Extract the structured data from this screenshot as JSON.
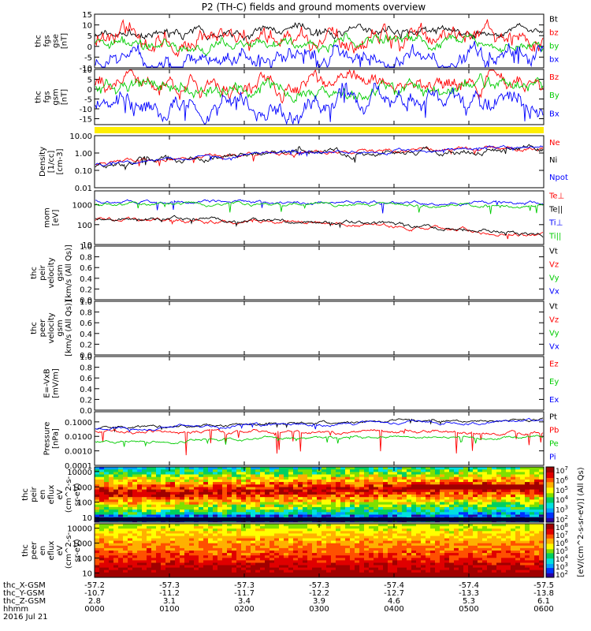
{
  "chart_data": {
    "type": "line",
    "title": "P2 (TH-C) fields and ground moments overview",
    "date": "2016 Jul 21",
    "time_ticks": [
      "0000",
      "0100",
      "0200",
      "0300",
      "0400",
      "0500",
      "0600"
    ],
    "ephemeris": [
      {
        "label": "thc_X-GSM",
        "values": [
          "-57.2",
          "-57.3",
          "-57.3",
          "-57.3",
          "-57.4",
          "-57.4",
          "-57.5"
        ]
      },
      {
        "label": "thc_Y-GSM",
        "values": [
          "-10.7",
          "-11.2",
          "-11.7",
          "-12.2",
          "-12.7",
          "-13.3",
          "-13.8"
        ]
      },
      {
        "label": "thc_Z-GSM",
        "values": [
          "2.8",
          "3.1",
          "3.4",
          "3.9",
          "4.6",
          "5.3",
          "6.1"
        ]
      },
      {
        "label": "hhmm",
        "values": [
          "0000",
          "0100",
          "0200",
          "0300",
          "0400",
          "0500",
          "0600"
        ]
      }
    ],
    "panels": [
      {
        "id": "fgs_gse",
        "ylabel": [
          "thc",
          "fgs",
          "gse",
          "[nT]"
        ],
        "yticks": [
          "15",
          "10",
          "5",
          "0",
          "-5",
          "-10"
        ],
        "ylim": [
          -10,
          15
        ],
        "series": [
          {
            "name": "Bt",
            "color": "#000000",
            "base": 6.5,
            "trend": 0.3,
            "noise": 1.2,
            "spike": 1.5
          },
          {
            "name": "bz",
            "color": "#ff0000",
            "base": 2.5,
            "trend": 2.5,
            "noise": 2.5,
            "spike": 2.0
          },
          {
            "name": "by",
            "color": "#00cc00",
            "base": 0.5,
            "trend": 1.0,
            "noise": 1.5,
            "spike": 2.0
          },
          {
            "name": "bx",
            "color": "#0000ff",
            "base": -6.0,
            "trend": 1.5,
            "noise": 2.5,
            "spike": 8.0
          }
        ]
      },
      {
        "id": "fgs_gsm",
        "ylabel": [
          "thc",
          "fgs",
          "gsm",
          "[nT]"
        ],
        "yticks": [
          "10",
          "5",
          "0",
          "-5",
          "-10",
          "-15"
        ],
        "ylim": [
          -18,
          10
        ],
        "series": [
          {
            "name": "Bz",
            "color": "#ff0000",
            "base": 1.5,
            "trend": 3.0,
            "noise": 2.5,
            "spike": 2.5
          },
          {
            "name": "By",
            "color": "#00cc00",
            "base": 1.0,
            "trend": 0.0,
            "noise": 2.0,
            "spike": 2.5
          },
          {
            "name": "Bx",
            "color": "#0000ff",
            "base": -7.0,
            "trend": 0.5,
            "noise": 3.0,
            "spike": 8.0
          }
        ]
      },
      {
        "id": "density",
        "ylabel": [
          "Density",
          "[1/cc]",
          "[cm-3]"
        ],
        "yticks": [
          "10.00",
          "1.00",
          "0.10",
          "0.01"
        ],
        "ylim": [
          0.01,
          10
        ],
        "scale": "log",
        "series": [
          {
            "name": "Ne",
            "color": "#ff0000",
            "base": 0.2,
            "trend": 1.8,
            "noise": 0.15,
            "spike": 0.2
          },
          {
            "name": "Ni",
            "color": "#000000",
            "base": 0.18,
            "trend": 1.6,
            "noise": 0.22,
            "spike": 0.25
          },
          {
            "name": "Npot",
            "color": "#0000ff",
            "base": 0.21,
            "trend": 2.0,
            "noise": 0.12,
            "spike": 0.15
          }
        ]
      },
      {
        "id": "temperature",
        "ylabel": [
          "mom",
          "[eV]"
        ],
        "yticks": [
          "1000",
          "100",
          "10"
        ],
        "ylim": [
          10,
          5000
        ],
        "scale": "log",
        "series": [
          {
            "name": "Te⊥",
            "color": "#ff0000",
            "base": 180,
            "trend": -150,
            "noise": 0.12,
            "spike": 0.1
          },
          {
            "name": "Te||",
            "color": "#000000",
            "base": 220,
            "trend": -190,
            "noise": 0.12,
            "spike": 0.1
          },
          {
            "name": "Ti⊥",
            "color": "#0000ff",
            "base": 1500,
            "trend": -300,
            "noise": 0.1,
            "spike": 0.25
          },
          {
            "name": "Ti||",
            "color": "#00cc00",
            "base": 1100,
            "trend": -100,
            "noise": 0.1,
            "spike": 0.25
          }
        ]
      },
      {
        "id": "peir_velocity",
        "ylabel": [
          "thc",
          "peir",
          "velocity",
          "gsm",
          "[km/s (All Qs)]"
        ],
        "yticks": [
          "1.0",
          "0.8",
          "0.6",
          "0.4",
          "0.2",
          "0.0"
        ],
        "ylim": [
          0,
          1
        ],
        "empty": true,
        "series": [
          {
            "name": "Vt",
            "color": "#000000"
          },
          {
            "name": "Vz",
            "color": "#ff0000"
          },
          {
            "name": "Vy",
            "color": "#00cc00"
          },
          {
            "name": "Vx",
            "color": "#0000ff"
          }
        ]
      },
      {
        "id": "peer_velocity",
        "ylabel": [
          "thc",
          "peer",
          "velocity",
          "gsm",
          "[km/s (All Qs)]"
        ],
        "yticks": [
          "1.0",
          "0.8",
          "0.6",
          "0.4",
          "0.2",
          "0.0"
        ],
        "ylim": [
          0,
          1
        ],
        "empty": true,
        "series": [
          {
            "name": "Vt",
            "color": "#000000"
          },
          {
            "name": "Vz",
            "color": "#ff0000"
          },
          {
            "name": "Vy",
            "color": "#00cc00"
          },
          {
            "name": "Vx",
            "color": "#0000ff"
          }
        ]
      },
      {
        "id": "efield",
        "ylabel": [
          "E=-VxB",
          "[mV/m]"
        ],
        "yticks": [
          "1.0",
          "0.8",
          "0.6",
          "0.4",
          "0.2",
          "0.0"
        ],
        "ylim": [
          0,
          1
        ],
        "empty": true,
        "series": [
          {
            "name": "Ez",
            "color": "#ff0000"
          },
          {
            "name": "Ey",
            "color": "#00cc00"
          },
          {
            "name": "Ex",
            "color": "#0000ff"
          }
        ]
      },
      {
        "id": "pressure",
        "ylabel": [
          "Pressure",
          "[nPa]"
        ],
        "yticks": [
          "0.1000",
          "0.0100",
          "0.0010",
          "0.0001"
        ],
        "ylim": [
          0.0001,
          0.5
        ],
        "scale": "log",
        "series": [
          {
            "name": "Pt",
            "color": "#000000",
            "base": 0.035,
            "trend": 0.1,
            "noise": 0.12,
            "spike": 0.15
          },
          {
            "name": "Pb",
            "color": "#ff0000",
            "base": 0.02,
            "trend": 0.0,
            "noise": 0.15,
            "spike": 0.8
          },
          {
            "name": "Pe",
            "color": "#00cc00",
            "base": 0.004,
            "trend": 0.006,
            "noise": 0.12,
            "spike": 0.2
          },
          {
            "name": "Pi",
            "color": "#0000ff",
            "base": 0.03,
            "trend": 0.08,
            "noise": 0.12,
            "spike": 0.15
          }
        ]
      }
    ],
    "spectrograms": [
      {
        "id": "peir_eflux",
        "ylabel": [
          "thc",
          "peir",
          "en",
          "eflux",
          "eV",
          "(cm^2-s-",
          "sr-eV)"
        ],
        "yticks": [
          "10000",
          "1000",
          "100",
          "10"
        ],
        "ylim": [
          5,
          20000
        ],
        "scale": "log"
      },
      {
        "id": "peer_eflux",
        "ylabel": [
          "thc",
          "peer",
          "en",
          "eflux",
          "eV",
          "(cm^2-s-",
          "sr-eV)"
        ],
        "yticks": [
          "10000",
          "1000",
          "100",
          "10"
        ],
        "ylim": [
          5,
          20000
        ],
        "scale": "log"
      }
    ],
    "colorbar": {
      "label": "[eV/(cm^2-s-sr-eV)] (All Qs)",
      "ion_ticks": [
        "7",
        "6",
        "5",
        "4",
        "3",
        "2"
      ],
      "electron_ticks": [
        "8",
        "7",
        "6",
        "5",
        "4",
        "3",
        "2"
      ],
      "tick_base": "10"
    }
  }
}
